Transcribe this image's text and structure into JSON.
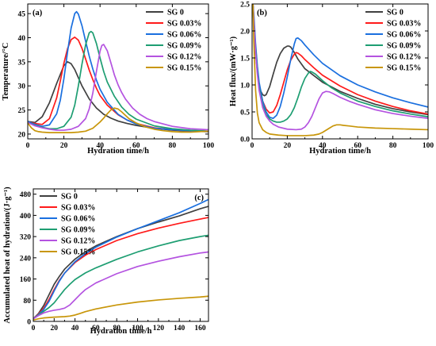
{
  "chart_data": [
    {
      "panel": "(a)",
      "type": "line",
      "xlabel": "Hydration time/h",
      "ylabel": "Temperature/°C",
      "xlim": [
        0,
        100
      ],
      "ylim": [
        19,
        47
      ],
      "xticks": [
        "0",
        "20",
        "40",
        "60",
        "80",
        "100"
      ],
      "yticks": [
        "20",
        "25",
        "30",
        "35",
        "40",
        "45"
      ],
      "legend_position": "top-right",
      "series": [
        {
          "name": "SG 0",
          "color": "#404040",
          "x": [
            0,
            4,
            8,
            12,
            16,
            20,
            22,
            24,
            26,
            28,
            30,
            34,
            38,
            42,
            46,
            50,
            55,
            60,
            70,
            80,
            90,
            100
          ],
          "y": [
            22.6,
            22.4,
            23.6,
            26.5,
            30.5,
            34.2,
            35.0,
            34.6,
            33.4,
            31.7,
            30.0,
            27.3,
            25.4,
            24.1,
            23.3,
            22.7,
            22.2,
            21.8,
            21.2,
            20.8,
            20.6,
            20.5
          ]
        },
        {
          "name": "SG 0.03%",
          "color": "#ff1a1a",
          "x": [
            0,
            4,
            8,
            12,
            16,
            18,
            20,
            22,
            24,
            26,
            28,
            30,
            32,
            34,
            36,
            38,
            40,
            44,
            50,
            55,
            60,
            70,
            80,
            90,
            100
          ],
          "y": [
            22.5,
            22.2,
            22.0,
            23.2,
            27.5,
            31.0,
            34.7,
            37.7,
            39.6,
            40.1,
            39.5,
            37.8,
            35.6,
            33.3,
            31.3,
            29.5,
            28.0,
            26.0,
            24.0,
            22.9,
            22.2,
            21.3,
            20.9,
            20.7,
            20.6
          ]
        },
        {
          "name": "SG 0.06%",
          "color": "#1a6fdf",
          "x": [
            0,
            4,
            8,
            12,
            16,
            18,
            20,
            22,
            24,
            26,
            27,
            28,
            30,
            32,
            34,
            36,
            38,
            40,
            44,
            50,
            55,
            60,
            70,
            80,
            90,
            100
          ],
          "y": [
            22.6,
            22.0,
            21.6,
            21.9,
            24.2,
            27.0,
            31.5,
            37.0,
            42.0,
            45.0,
            45.4,
            44.9,
            42.5,
            39.3,
            36.2,
            33.5,
            31.2,
            29.3,
            26.6,
            24.1,
            22.9,
            22.1,
            21.2,
            20.9,
            20.7,
            20.6
          ]
        },
        {
          "name": "SG 0.09%",
          "color": "#1e9e72",
          "x": [
            0,
            4,
            8,
            12,
            16,
            20,
            24,
            26,
            28,
            30,
            32,
            34,
            35,
            36,
            38,
            40,
            42,
            44,
            48,
            52,
            56,
            60,
            70,
            80,
            90,
            100
          ],
          "y": [
            22.4,
            21.8,
            21.4,
            21.1,
            21.1,
            21.6,
            23.5,
            26.0,
            30.0,
            34.5,
            38.5,
            41.0,
            41.3,
            41.0,
            38.8,
            35.8,
            33.0,
            30.8,
            27.8,
            25.6,
            24.1,
            23.1,
            21.7,
            21.1,
            20.8,
            20.6
          ]
        },
        {
          "name": "SG 0.12%",
          "color": "#b453e0",
          "x": [
            0,
            4,
            8,
            12,
            16,
            20,
            24,
            28,
            32,
            34,
            36,
            38,
            40,
            41,
            42,
            44,
            46,
            48,
            50,
            52,
            54,
            58,
            62,
            66,
            70,
            80,
            90,
            100
          ],
          "y": [
            22.4,
            21.7,
            21.3,
            21.0,
            20.8,
            20.8,
            21.0,
            21.6,
            23.2,
            25.2,
            28.5,
            33.0,
            37.2,
            38.4,
            38.6,
            37.3,
            34.8,
            32.2,
            30.2,
            28.6,
            27.3,
            25.4,
            24.1,
            23.2,
            22.6,
            21.6,
            21.1,
            20.9
          ]
        },
        {
          "name": "SG 0.15%",
          "color": "#c8960a",
          "x": [
            0,
            2,
            4,
            6,
            8,
            12,
            16,
            20,
            24,
            28,
            32,
            36,
            40,
            42,
            44,
            46,
            48,
            50,
            52,
            54,
            56,
            60,
            65,
            70,
            75,
            80,
            85,
            90,
            95,
            100
          ],
          "y": [
            22.3,
            21.3,
            20.7,
            20.5,
            20.4,
            20.3,
            20.3,
            20.3,
            20.3,
            20.4,
            20.6,
            21.2,
            22.5,
            23.3,
            24.2,
            25.0,
            25.4,
            25.2,
            24.6,
            23.9,
            23.2,
            22.3,
            21.5,
            21.0,
            20.7,
            20.5,
            20.4,
            20.4,
            20.5,
            20.6
          ]
        }
      ]
    },
    {
      "panel": "(b)",
      "type": "line",
      "xlabel": "Hydration time/h",
      "ylabel": "Heat flux/(mW·g⁻¹)",
      "xlim": [
        0,
        100
      ],
      "ylim": [
        0,
        2.5
      ],
      "xticks": [
        "0",
        "20",
        "40",
        "60",
        "80",
        "100"
      ],
      "yticks": [
        "0.0",
        "0.5",
        "1.0",
        "1.5",
        "2.0",
        "2.5"
      ],
      "legend_position": "top-right",
      "series": [
        {
          "name": "SG 0",
          "color": "#404040",
          "x": [
            0.5,
            1,
            2,
            3,
            4,
            5,
            6,
            7,
            8,
            10,
            12,
            14,
            16,
            18,
            20,
            21,
            22,
            24,
            26,
            30,
            40,
            50,
            60,
            70,
            80,
            90,
            100
          ],
          "y": [
            2.5,
            2.1,
            1.6,
            1.25,
            1.0,
            0.88,
            0.82,
            0.8,
            0.82,
            0.97,
            1.2,
            1.42,
            1.58,
            1.68,
            1.72,
            1.72,
            1.7,
            1.6,
            1.48,
            1.3,
            1.05,
            0.88,
            0.75,
            0.64,
            0.56,
            0.5,
            0.45
          ]
        },
        {
          "name": "SG 0.03%",
          "color": "#ff1a1a",
          "x": [
            0.5,
            1,
            2,
            3,
            4,
            6,
            8,
            10,
            12,
            14,
            16,
            18,
            20,
            22,
            24,
            25,
            26,
            28,
            30,
            35,
            40,
            50,
            60,
            70,
            80,
            90,
            100
          ],
          "y": [
            2.5,
            2.2,
            1.7,
            1.3,
            1.0,
            0.7,
            0.55,
            0.48,
            0.5,
            0.62,
            0.82,
            1.05,
            1.28,
            1.46,
            1.57,
            1.6,
            1.59,
            1.54,
            1.47,
            1.32,
            1.18,
            0.98,
            0.82,
            0.7,
            0.6,
            0.52,
            0.46
          ]
        },
        {
          "name": "SG 0.06%",
          "color": "#1a6fdf",
          "x": [
            0.5,
            1,
            2,
            3,
            4,
            6,
            8,
            10,
            12,
            14,
            16,
            18,
            20,
            22,
            24,
            25,
            26,
            28,
            30,
            35,
            40,
            50,
            60,
            70,
            80,
            90,
            100
          ],
          "y": [
            2.5,
            2.3,
            1.75,
            1.35,
            1.05,
            0.7,
            0.5,
            0.4,
            0.38,
            0.44,
            0.6,
            0.85,
            1.15,
            1.48,
            1.76,
            1.86,
            1.87,
            1.82,
            1.74,
            1.56,
            1.4,
            1.17,
            1.0,
            0.87,
            0.76,
            0.67,
            0.59
          ]
        },
        {
          "name": "SG 0.09%",
          "color": "#1e9e72",
          "x": [
            0.5,
            1,
            2,
            3,
            4,
            6,
            8,
            10,
            12,
            14,
            16,
            18,
            20,
            22,
            24,
            26,
            28,
            30,
            32,
            33,
            34,
            36,
            40,
            45,
            50,
            60,
            70,
            80,
            90,
            100
          ],
          "y": [
            2.5,
            2.2,
            1.65,
            1.25,
            0.95,
            0.62,
            0.45,
            0.37,
            0.33,
            0.31,
            0.31,
            0.33,
            0.37,
            0.45,
            0.58,
            0.76,
            0.96,
            1.12,
            1.22,
            1.25,
            1.24,
            1.2,
            1.08,
            0.95,
            0.85,
            0.7,
            0.6,
            0.52,
            0.46,
            0.41
          ]
        },
        {
          "name": "SG 0.12%",
          "color": "#b453e0",
          "x": [
            0.5,
            1,
            2,
            3,
            4,
            6,
            8,
            10,
            12,
            15,
            20,
            25,
            28,
            30,
            32,
            34,
            36,
            38,
            40,
            42,
            44,
            46,
            50,
            55,
            60,
            70,
            80,
            90,
            100
          ],
          "y": [
            2.5,
            2.2,
            1.6,
            1.2,
            0.9,
            0.58,
            0.42,
            0.33,
            0.27,
            0.22,
            0.18,
            0.17,
            0.18,
            0.22,
            0.3,
            0.42,
            0.58,
            0.74,
            0.85,
            0.88,
            0.87,
            0.84,
            0.77,
            0.7,
            0.64,
            0.54,
            0.47,
            0.42,
            0.38
          ]
        },
        {
          "name": "SG 0.15%",
          "color": "#c8960a",
          "x": [
            0.5,
            1,
            2,
            3,
            4,
            6,
            8,
            10,
            15,
            20,
            25,
            30,
            35,
            38,
            40,
            42,
            44,
            46,
            48,
            50,
            52,
            55,
            60,
            70,
            80,
            90,
            100
          ],
          "y": [
            2.5,
            1.8,
            0.9,
            0.48,
            0.3,
            0.17,
            0.12,
            0.09,
            0.07,
            0.06,
            0.06,
            0.06,
            0.07,
            0.09,
            0.12,
            0.16,
            0.2,
            0.24,
            0.26,
            0.26,
            0.25,
            0.24,
            0.22,
            0.2,
            0.19,
            0.18,
            0.17
          ]
        }
      ]
    },
    {
      "panel": "(c)",
      "type": "line",
      "xlabel": "Hydration time/h",
      "ylabel": "Accumulated heat of hydration/(J·g⁻¹)",
      "xlim": [
        0,
        168
      ],
      "ylim": [
        0,
        500
      ],
      "xticks": [
        "0",
        "20",
        "40",
        "60",
        "80",
        "100",
        "120",
        "140",
        "160"
      ],
      "yticks": [
        "0",
        "80",
        "160",
        "240",
        "320",
        "400",
        "480"
      ],
      "legend_position": "top-left",
      "series": [
        {
          "name": "SG 0",
          "color": "#404040",
          "x": [
            0,
            5,
            10,
            15,
            20,
            25,
            30,
            40,
            50,
            60,
            80,
            100,
            120,
            140,
            160,
            168
          ],
          "y": [
            10,
            30,
            60,
            100,
            140,
            170,
            197,
            235,
            263,
            285,
            320,
            350,
            375,
            398,
            425,
            434
          ]
        },
        {
          "name": "SG 0.03%",
          "color": "#ff1a1a",
          "x": [
            0,
            5,
            10,
            15,
            20,
            25,
            30,
            40,
            50,
            60,
            80,
            100,
            120,
            140,
            160,
            168
          ],
          "y": [
            10,
            28,
            50,
            82,
            120,
            155,
            182,
            222,
            250,
            271,
            305,
            331,
            352,
            370,
            386,
            392
          ]
        },
        {
          "name": "SG 0.06%",
          "color": "#1a6fdf",
          "x": [
            0,
            5,
            10,
            15,
            20,
            25,
            30,
            40,
            50,
            60,
            80,
            100,
            120,
            140,
            160,
            168
          ],
          "y": [
            10,
            26,
            45,
            75,
            115,
            152,
            182,
            225,
            256,
            280,
            318,
            350,
            380,
            410,
            445,
            460
          ]
        },
        {
          "name": "SG 0.09%",
          "color": "#1e9e72",
          "x": [
            0,
            5,
            10,
            15,
            20,
            25,
            30,
            35,
            40,
            50,
            60,
            80,
            100,
            120,
            140,
            160,
            168
          ],
          "y": [
            10,
            24,
            38,
            52,
            70,
            95,
            120,
            140,
            158,
            183,
            202,
            234,
            262,
            285,
            305,
            320,
            325
          ]
        },
        {
          "name": "SG 0.12%",
          "color": "#b453e0",
          "x": [
            0,
            5,
            10,
            15,
            20,
            25,
            30,
            35,
            40,
            45,
            50,
            60,
            80,
            100,
            120,
            140,
            160,
            168
          ],
          "y": [
            10,
            22,
            32,
            38,
            42,
            45,
            50,
            62,
            82,
            102,
            120,
            145,
            180,
            207,
            227,
            244,
            258,
            262
          ]
        },
        {
          "name": "SG 0.15%",
          "color": "#c8960a",
          "x": [
            0,
            5,
            10,
            20,
            30,
            35,
            40,
            45,
            50,
            60,
            80,
            100,
            120,
            140,
            160,
            168
          ],
          "y": [
            5,
            10,
            13,
            16,
            18,
            20,
            24,
            30,
            37,
            47,
            62,
            73,
            81,
            87,
            92,
            95
          ]
        }
      ]
    }
  ]
}
